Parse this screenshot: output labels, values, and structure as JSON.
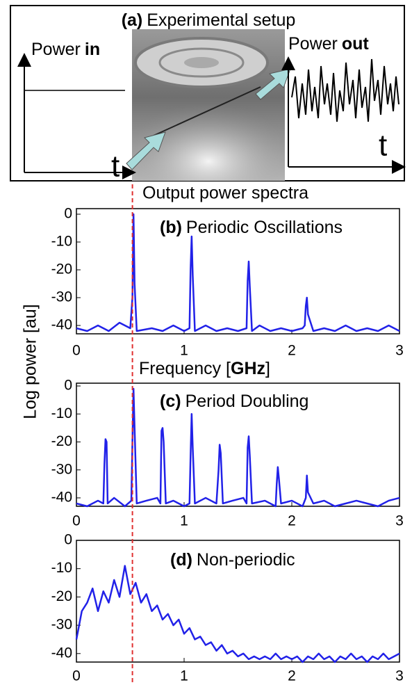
{
  "panel_a": {
    "label": "(a)",
    "title": "Experimental setup",
    "power_in_word": "Power",
    "power_in": "in",
    "power_out_word": "Power",
    "power_out": "out",
    "t_in": "t",
    "t_out": "t"
  },
  "reference_line": {
    "x": 0.52,
    "color": "#e03030"
  },
  "chart_data": [
    {
      "type": "line",
      "title": "Output power spectra",
      "label": "(b)",
      "annotation": "Periodic Oscillations",
      "xlabel_start": "Frequency [",
      "xlabel_unit": "GHz",
      "xlabel_end": "]",
      "color": "#2121e8",
      "xlim": [
        0,
        3
      ],
      "ylim": [
        -43,
        2
      ],
      "xticks": [
        0,
        1,
        2,
        3
      ],
      "yticks": [
        0,
        -10,
        -20,
        -30,
        -40
      ],
      "x": [
        0,
        0.1,
        0.2,
        0.3,
        0.4,
        0.5,
        0.52,
        0.53,
        0.54,
        0.56,
        0.7,
        0.8,
        0.9,
        1.0,
        1.05,
        1.06,
        1.07,
        1.08,
        1.1,
        1.2,
        1.3,
        1.4,
        1.5,
        1.58,
        1.59,
        1.6,
        1.61,
        1.63,
        1.7,
        1.8,
        1.9,
        2.0,
        2.1,
        2.12,
        2.13,
        2.14,
        2.15,
        2.2,
        2.3,
        2.4,
        2.5,
        2.6,
        2.7,
        2.8,
        2.9,
        3.0
      ],
      "values": [
        -41,
        -42,
        -40,
        -42,
        -39,
        -41,
        -30,
        0,
        -25,
        -42,
        -41,
        -42,
        -40,
        -42,
        -41,
        -20,
        -8,
        -22,
        -42,
        -40,
        -42,
        -41,
        -42,
        -41,
        -24,
        -17,
        -26,
        -42,
        -40,
        -42,
        -41,
        -42,
        -41,
        -40,
        -33,
        -30,
        -36,
        -42,
        -41,
        -42,
        -40,
        -42,
        -41,
        -42,
        -40,
        -42
      ]
    },
    {
      "type": "line",
      "label": "(c)",
      "annotation": "Period Doubling",
      "ylabel": "Log power [au]",
      "color": "#2121e8",
      "xlim": [
        0,
        3
      ],
      "ylim": [
        -43,
        1
      ],
      "xticks": [
        0,
        1,
        2,
        3
      ],
      "yticks": [
        0,
        -10,
        -20,
        -30,
        -40
      ],
      "x": [
        0,
        0.1,
        0.2,
        0.25,
        0.26,
        0.27,
        0.28,
        0.29,
        0.35,
        0.45,
        0.51,
        0.52,
        0.53,
        0.54,
        0.56,
        0.65,
        0.75,
        0.78,
        0.79,
        0.8,
        0.81,
        0.83,
        0.9,
        1.0,
        1.05,
        1.06,
        1.07,
        1.08,
        1.1,
        1.2,
        1.3,
        1.32,
        1.33,
        1.34,
        1.36,
        1.45,
        1.55,
        1.58,
        1.59,
        1.6,
        1.61,
        1.63,
        1.75,
        1.85,
        1.86,
        1.87,
        1.88,
        1.9,
        2.0,
        2.1,
        2.13,
        2.14,
        2.15,
        2.2,
        2.3,
        2.4,
        2.5,
        2.6,
        2.7,
        2.8,
        2.9,
        3.0
      ],
      "values": [
        -42,
        -43,
        -41,
        -42,
        -28,
        -19,
        -20,
        -42,
        -40,
        -43,
        -41,
        -20,
        -1,
        -15,
        -42,
        -41,
        -40,
        -42,
        -16,
        -15,
        -20,
        -42,
        -41,
        -43,
        -42,
        -25,
        -10,
        -22,
        -42,
        -40,
        -42,
        -30,
        -21,
        -24,
        -42,
        -41,
        -40,
        -42,
        -22,
        -18,
        -25,
        -42,
        -41,
        -43,
        -35,
        -29,
        -33,
        -42,
        -41,
        -43,
        -40,
        -32,
        -38,
        -42,
        -41,
        -43,
        -42,
        -41,
        -42,
        -43,
        -41,
        -40
      ]
    },
    {
      "type": "line",
      "label": "(d)",
      "annotation": "Non-periodic",
      "color": "#2121e8",
      "xlim": [
        0,
        3
      ],
      "ylim": [
        -43,
        0
      ],
      "xticks": [
        0,
        1,
        2,
        3
      ],
      "yticks": [
        0,
        -10,
        -20,
        -30,
        -40
      ],
      "x": [
        0,
        0.05,
        0.1,
        0.15,
        0.2,
        0.25,
        0.3,
        0.35,
        0.4,
        0.45,
        0.5,
        0.55,
        0.6,
        0.65,
        0.7,
        0.75,
        0.8,
        0.85,
        0.9,
        0.95,
        1.0,
        1.05,
        1.1,
        1.15,
        1.2,
        1.25,
        1.3,
        1.35,
        1.4,
        1.45,
        1.5,
        1.55,
        1.6,
        1.65,
        1.7,
        1.75,
        1.8,
        1.85,
        1.9,
        1.95,
        2.0,
        2.05,
        2.1,
        2.15,
        2.2,
        2.25,
        2.3,
        2.35,
        2.4,
        2.45,
        2.5,
        2.55,
        2.6,
        2.65,
        2.7,
        2.75,
        2.8,
        2.85,
        2.9,
        2.95,
        3.0
      ],
      "values": [
        -35,
        -25,
        -22,
        -17,
        -25,
        -18,
        -22,
        -14,
        -20,
        -9,
        -19,
        -15,
        -22,
        -19,
        -25,
        -23,
        -28,
        -26,
        -30,
        -28,
        -33,
        -31,
        -35,
        -34,
        -37,
        -36,
        -39,
        -37,
        -40,
        -39,
        -41,
        -40,
        -42,
        -41,
        -42,
        -41,
        -42,
        -40,
        -42,
        -41,
        -42,
        -41,
        -43,
        -41,
        -42,
        -40,
        -42,
        -41,
        -43,
        -41,
        -42,
        -40,
        -42,
        -41,
        -43,
        -41,
        -42,
        -40,
        -42,
        -41,
        -40
      ]
    }
  ]
}
